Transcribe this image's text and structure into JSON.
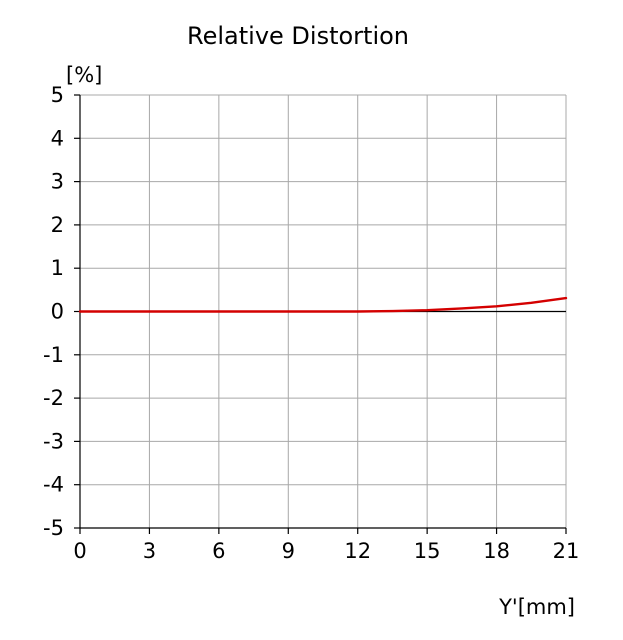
{
  "chart_data": {
    "type": "line",
    "title": "Relative Distortion",
    "xlabel": "Y'[mm]",
    "ylabel": "[%]",
    "xlim": [
      0,
      21
    ],
    "ylim": [
      -5,
      5
    ],
    "x_ticks": [
      "0",
      "3",
      "6",
      "9",
      "12",
      "15",
      "18",
      "21"
    ],
    "y_ticks": [
      "5",
      "4",
      "3",
      "2",
      "1",
      "0",
      "-1",
      "-2",
      "-3",
      "-4",
      "-5"
    ],
    "grid": true,
    "colors": {
      "series": "#d40000",
      "grid": "#a8a8a8",
      "axis": "#000000"
    },
    "series": [
      {
        "x": [
          0,
          3,
          6,
          9,
          10.5,
          12,
          13.5,
          15,
          16.5,
          18,
          19.5,
          21
        ],
        "y": [
          0,
          0,
          0,
          0,
          0,
          0,
          0.01,
          0.03,
          0.07,
          0.12,
          0.2,
          0.31
        ]
      }
    ]
  }
}
